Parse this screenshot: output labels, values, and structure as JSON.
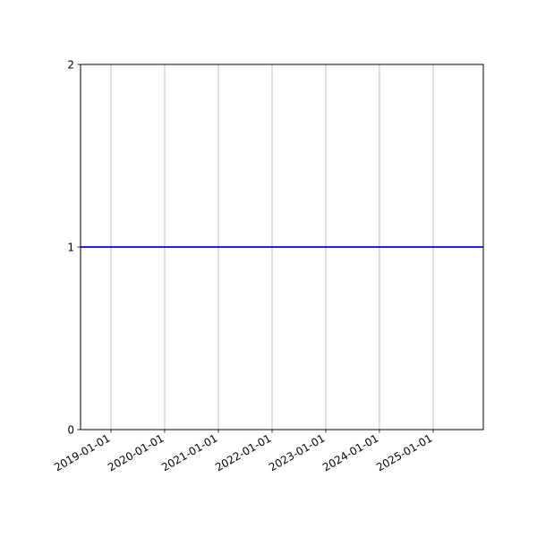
{
  "chart_data": {
    "type": "line",
    "title": "",
    "xlabel": "",
    "ylabel": "",
    "x_axis_type": "date",
    "xlim": [
      "2018-06-08",
      "2025-12-08"
    ],
    "ylim": [
      0,
      2
    ],
    "x_ticks": [
      "2019-01-01",
      "2020-01-01",
      "2021-01-01",
      "2022-01-01",
      "2023-01-01",
      "2024-01-01",
      "2025-01-01"
    ],
    "y_ticks": [
      "0",
      "1",
      "2"
    ],
    "grid": "x-axis vertical lines",
    "series": [
      {
        "color": "#0000ff",
        "x": [
          "2018-06-08",
          "2025-12-08"
        ],
        "y": [
          1,
          1
        ]
      }
    ]
  }
}
